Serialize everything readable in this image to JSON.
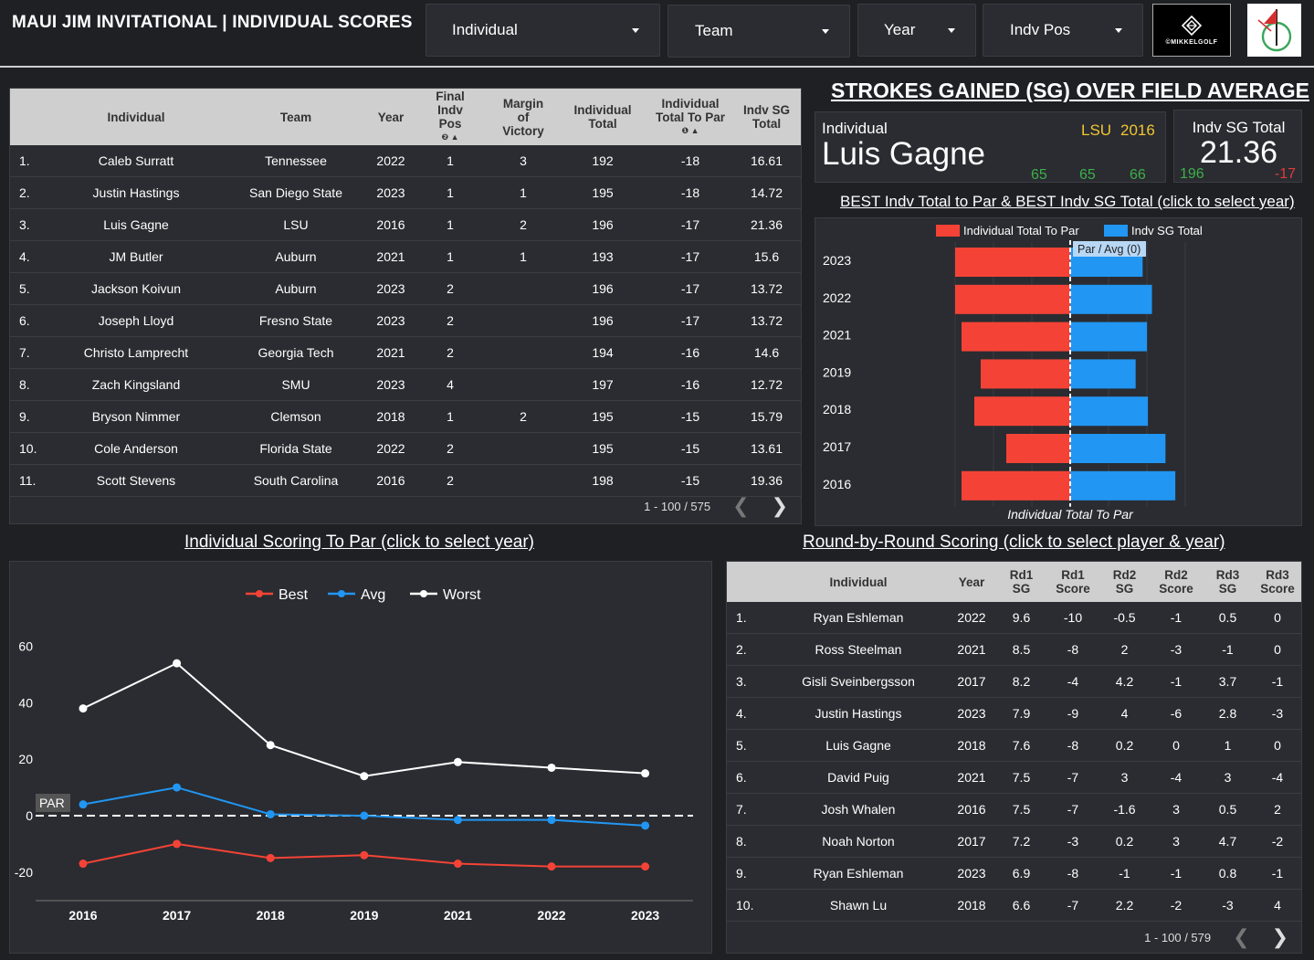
{
  "header": {
    "title": "MAUI JIM INVITATIONAL | INDIVIDUAL SCORES",
    "filters": [
      {
        "label": "Individual"
      },
      {
        "label": "Team"
      },
      {
        "label": "Year"
      },
      {
        "label": "Indv Pos"
      }
    ],
    "logo_text": "©MIKKELGOLF"
  },
  "main_table": {
    "columns": [
      "Individual",
      "Team",
      "Year",
      "Final Indv Pos",
      "Margin of Victory",
      "Individual Total",
      "Individual Total To Par",
      "Indv SG Total"
    ],
    "rows": [
      {
        "rank": "1.",
        "individual": "Caleb Surratt",
        "team": "Tennessee",
        "year": "2022",
        "pos": "1",
        "margin": "3",
        "total": "192",
        "to_par": "-18",
        "sg": "16.61"
      },
      {
        "rank": "2.",
        "individual": "Justin Hastings",
        "team": "San Diego State",
        "year": "2023",
        "pos": "1",
        "margin": "1",
        "total": "195",
        "to_par": "-18",
        "sg": "14.72"
      },
      {
        "rank": "3.",
        "individual": "Luis Gagne",
        "team": "LSU",
        "year": "2016",
        "pos": "1",
        "margin": "2",
        "total": "196",
        "to_par": "-17",
        "sg": "21.36"
      },
      {
        "rank": "4.",
        "individual": "JM Butler",
        "team": "Auburn",
        "year": "2021",
        "pos": "1",
        "margin": "1",
        "total": "193",
        "to_par": "-17",
        "sg": "15.6"
      },
      {
        "rank": "5.",
        "individual": "Jackson Koivun",
        "team": "Auburn",
        "year": "2023",
        "pos": "2",
        "margin": "",
        "total": "196",
        "to_par": "-17",
        "sg": "13.72"
      },
      {
        "rank": "6.",
        "individual": "Joseph Lloyd",
        "team": "Fresno State",
        "year": "2023",
        "pos": "2",
        "margin": "",
        "total": "196",
        "to_par": "-17",
        "sg": "13.72"
      },
      {
        "rank": "7.",
        "individual": "Christo Lamprecht",
        "team": "Georgia Tech",
        "year": "2021",
        "pos": "2",
        "margin": "",
        "total": "194",
        "to_par": "-16",
        "sg": "14.6"
      },
      {
        "rank": "8.",
        "individual": "Zach Kingsland",
        "team": "SMU",
        "year": "2023",
        "pos": "4",
        "margin": "",
        "total": "197",
        "to_par": "-16",
        "sg": "12.72"
      },
      {
        "rank": "9.",
        "individual": "Bryson Nimmer",
        "team": "Clemson",
        "year": "2018",
        "pos": "1",
        "margin": "2",
        "total": "195",
        "to_par": "-15",
        "sg": "15.79"
      },
      {
        "rank": "10.",
        "individual": "Cole Anderson",
        "team": "Florida State",
        "year": "2022",
        "pos": "2",
        "margin": "",
        "total": "195",
        "to_par": "-15",
        "sg": "13.61"
      },
      {
        "rank": "11.",
        "individual": "Scott Stevens",
        "team": "South Carolina",
        "year": "2016",
        "pos": "2",
        "margin": "",
        "total": "198",
        "to_par": "-15",
        "sg": "19.36"
      }
    ],
    "pager": "1 - 100 / 575"
  },
  "sg_section": {
    "title": "STROKES GAINED (SG) OVER FIELD AVERAGE",
    "card": {
      "label": "Individual",
      "name": "Luis Gagne",
      "team": "LSU",
      "year": "2016",
      "r1": "65",
      "r2": "65",
      "r3": "66"
    },
    "total_card": {
      "label": "Indv SG Total",
      "value": "21.36",
      "total": "196",
      "to_par": "-17"
    },
    "chart_title": "BEST Indv Total to Par & BEST Indv SG Total (click to select year)"
  },
  "line_title": "Individual Scoring To Par (click to select year)",
  "round_title": "Round-by-Round Scoring (click to select player & year)",
  "round_table": {
    "columns": [
      "Individual",
      "Year",
      "Rd1 SG",
      "Rd1 Score",
      "Rd2 SG",
      "Rd2 Score",
      "Rd3 SG",
      "Rd3 Score"
    ],
    "rows": [
      {
        "rank": "1.",
        "individual": "Ryan Eshleman",
        "year": "2022",
        "rd1sg": "9.6",
        "rd1": "-10",
        "rd2sg": "-0.5",
        "rd2": "-1",
        "rd3sg": "0.5",
        "rd3": "0"
      },
      {
        "rank": "2.",
        "individual": "Ross Steelman",
        "year": "2021",
        "rd1sg": "8.5",
        "rd1": "-8",
        "rd2sg": "2",
        "rd2": "-3",
        "rd3sg": "-1",
        "rd3": "0"
      },
      {
        "rank": "3.",
        "individual": "Gisli Sveinbergsson",
        "year": "2017",
        "rd1sg": "8.2",
        "rd1": "-4",
        "rd2sg": "4.2",
        "rd2": "-1",
        "rd3sg": "3.7",
        "rd3": "-1"
      },
      {
        "rank": "4.",
        "individual": "Justin Hastings",
        "year": "2023",
        "rd1sg": "7.9",
        "rd1": "-9",
        "rd2sg": "4",
        "rd2": "-6",
        "rd3sg": "2.8",
        "rd3": "-3"
      },
      {
        "rank": "5.",
        "individual": "Luis Gagne",
        "year": "2018",
        "rd1sg": "7.6",
        "rd1": "-8",
        "rd2sg": "0.2",
        "rd2": "0",
        "rd3sg": "1",
        "rd3": "0"
      },
      {
        "rank": "6.",
        "individual": "David Puig",
        "year": "2021",
        "rd1sg": "7.5",
        "rd1": "-7",
        "rd2sg": "3",
        "rd2": "-4",
        "rd3sg": "3",
        "rd3": "-4"
      },
      {
        "rank": "7.",
        "individual": "Josh Whalen",
        "year": "2016",
        "rd1sg": "7.5",
        "rd1": "-7",
        "rd2sg": "-1.6",
        "rd2": "3",
        "rd3sg": "0.5",
        "rd3": "2"
      },
      {
        "rank": "8.",
        "individual": "Noah Norton",
        "year": "2017",
        "rd1sg": "7.2",
        "rd1": "-3",
        "rd2sg": "0.2",
        "rd2": "3",
        "rd3sg": "4.7",
        "rd3": "-2"
      },
      {
        "rank": "9.",
        "individual": "Ryan Eshleman",
        "year": "2023",
        "rd1sg": "6.9",
        "rd1": "-8",
        "rd2sg": "-1",
        "rd2": "-1",
        "rd3sg": "0.8",
        "rd3": "-1"
      },
      {
        "rank": "10.",
        "individual": "Shawn Lu",
        "year": "2018",
        "rd1sg": "6.6",
        "rd1": "-7",
        "rd2sg": "2.2",
        "rd2": "-2",
        "rd3sg": "-3",
        "rd3": "4"
      }
    ],
    "pager": "1 - 100 / 579"
  },
  "chart_data": [
    {
      "type": "bar",
      "orientation": "horizontal-diverging",
      "title": "BEST Indv Total to Par & BEST Indv SG Total (click to select year)",
      "categories": [
        "2023",
        "2022",
        "2021",
        "2019",
        "2018",
        "2017",
        "2016"
      ],
      "series": [
        {
          "name": "Individual Total To Par",
          "color": "#f44336",
          "values": [
            -18,
            -18,
            -17,
            -14,
            -15,
            -10,
            -17
          ]
        },
        {
          "name": "Indv SG Total",
          "color": "#2196f3",
          "values": [
            14.72,
            16.61,
            15.6,
            13.3,
            15.79,
            19.36,
            21.36
          ]
        }
      ],
      "reference_label": "Par / Avg (0)",
      "xlabel": "Individual Total To Par",
      "xlim": [
        -20,
        20
      ]
    },
    {
      "type": "line",
      "title": "Individual Scoring To Par (click to select year)",
      "x": [
        "2016",
        "2017",
        "2018",
        "2019",
        "2021",
        "2022",
        "2023"
      ],
      "series": [
        {
          "name": "Best",
          "color": "#f44336",
          "values": [
            -17,
            -10,
            -15,
            -14,
            -17,
            -18,
            -18
          ]
        },
        {
          "name": "Avg",
          "color": "#2196f3",
          "values": [
            4,
            10,
            0.5,
            0,
            -1.5,
            -1.5,
            -3.5
          ]
        },
        {
          "name": "Worst",
          "color": "#ffffff",
          "values": [
            38,
            54,
            25,
            14,
            19,
            17,
            15
          ]
        }
      ],
      "yticks": [
        "60",
        "40",
        "20",
        "0",
        "-20"
      ],
      "ylim": [
        -30,
        62
      ],
      "reference_label": "PAR"
    }
  ]
}
